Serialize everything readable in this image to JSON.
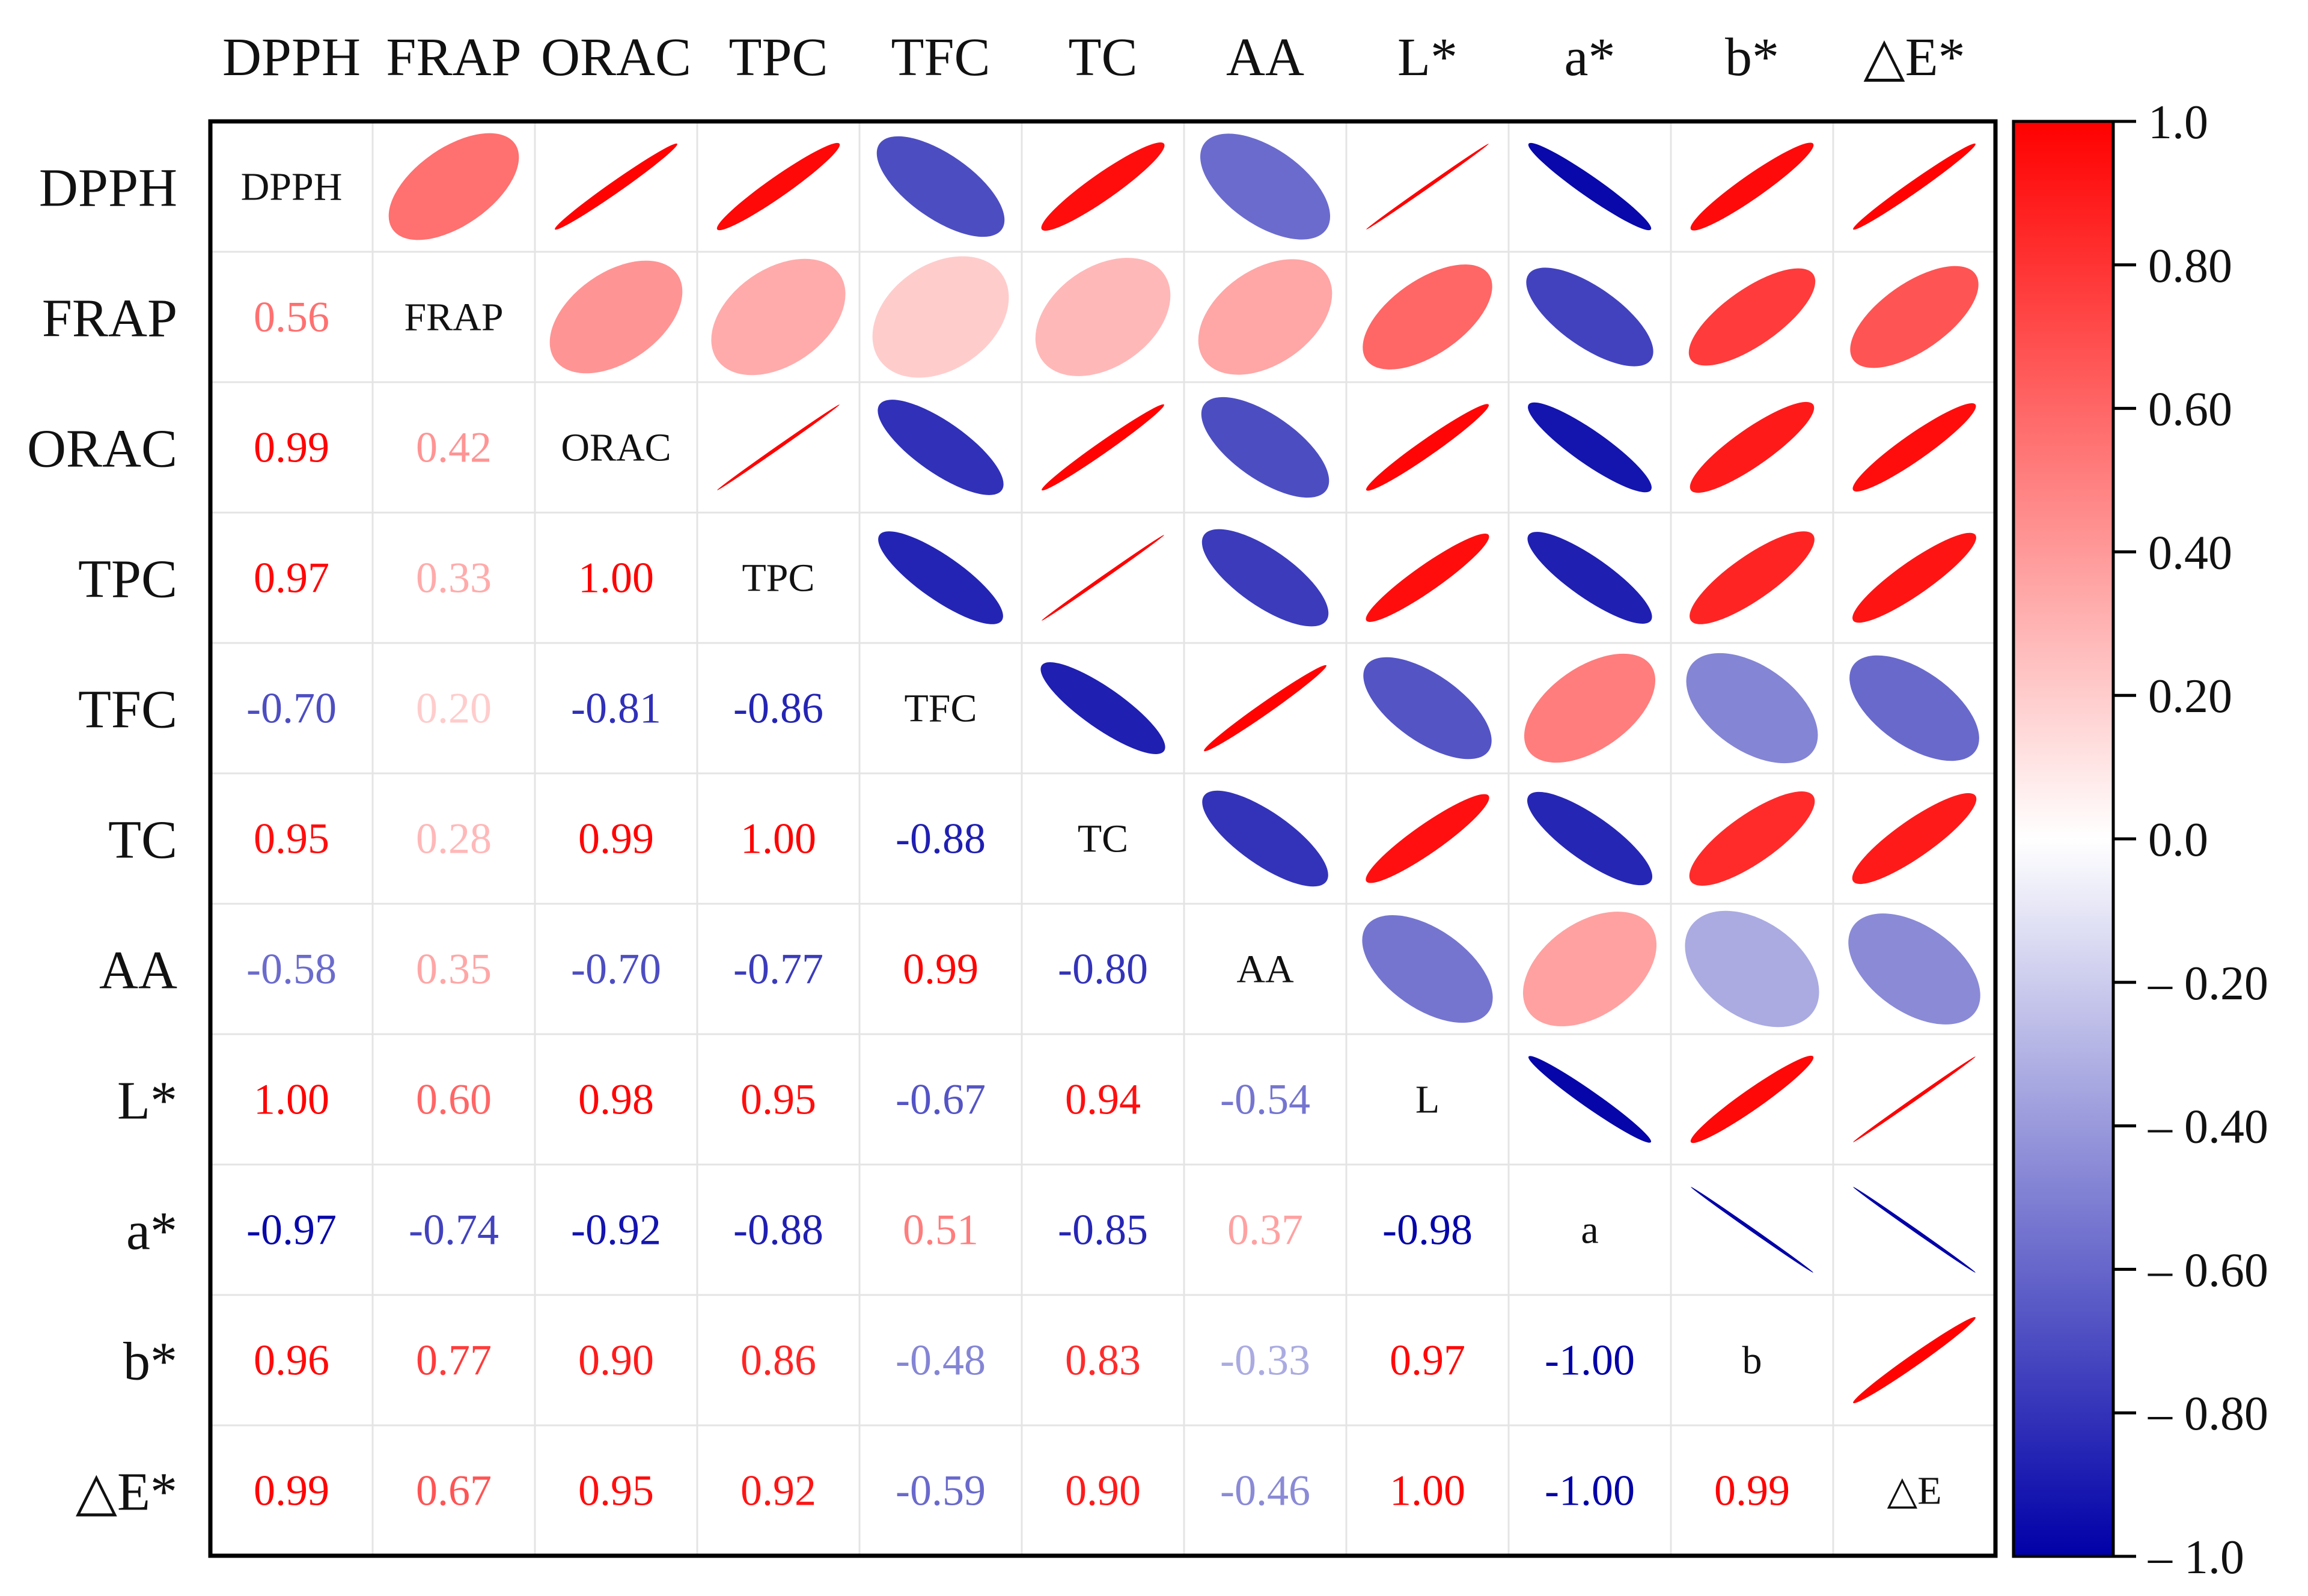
{
  "chart_data": {
    "type": "heatmap",
    "subtype": "correlation-matrix",
    "variables": [
      "DPPH",
      "FRAP",
      "ORAC",
      "TPC",
      "TFC",
      "TC",
      "AA",
      "L*",
      "a*",
      "b*",
      "△E*"
    ],
    "diagonal_labels": [
      "DPPH",
      "FRAP",
      "ORAC",
      "TPC",
      "TFC",
      "TC",
      "AA",
      "L",
      "a",
      "b",
      "△E"
    ],
    "matrix": [
      [
        1.0,
        0.56,
        0.99,
        0.97,
        -0.7,
        0.95,
        -0.58,
        1.0,
        -0.97,
        0.96,
        0.99
      ],
      [
        0.56,
        1.0,
        0.42,
        0.33,
        0.2,
        0.28,
        0.35,
        0.6,
        -0.74,
        0.77,
        0.67
      ],
      [
        0.99,
        0.42,
        1.0,
        1.0,
        -0.81,
        0.99,
        -0.7,
        0.98,
        -0.92,
        0.9,
        0.95
      ],
      [
        0.97,
        0.33,
        1.0,
        1.0,
        -0.86,
        1.0,
        -0.77,
        0.95,
        -0.88,
        0.86,
        0.92
      ],
      [
        -0.7,
        0.2,
        -0.81,
        -0.86,
        1.0,
        -0.88,
        0.99,
        -0.67,
        0.51,
        -0.48,
        -0.59
      ],
      [
        0.95,
        0.28,
        0.99,
        1.0,
        -0.88,
        1.0,
        -0.8,
        0.94,
        -0.85,
        0.83,
        0.9
      ],
      [
        -0.58,
        0.35,
        -0.7,
        -0.77,
        0.99,
        -0.8,
        1.0,
        -0.54,
        0.37,
        -0.33,
        -0.46
      ],
      [
        1.0,
        0.6,
        0.98,
        0.95,
        -0.67,
        0.94,
        -0.54,
        1.0,
        -0.98,
        0.97,
        1.0
      ],
      [
        -0.97,
        -0.74,
        -0.92,
        -0.88,
        0.51,
        -0.85,
        0.37,
        -0.98,
        1.0,
        -1.0,
        -1.0
      ],
      [
        0.96,
        0.77,
        0.9,
        0.86,
        -0.48,
        0.83,
        -0.33,
        0.97,
        -1.0,
        1.0,
        0.99
      ],
      [
        0.99,
        0.67,
        0.95,
        0.92,
        -0.59,
        0.9,
        -0.46,
        1.0,
        -1.0,
        0.99,
        1.0
      ]
    ],
    "lower_triangle": "numbers",
    "upper_triangle": "ellipses",
    "colorbar": {
      "range": [
        -1.0,
        1.0
      ],
      "ticks": [
        "1.0",
        "0.80",
        "0.60",
        "0.40",
        "0.20",
        "0.0",
        "– 0.20",
        "– 0.40",
        "– 0.60",
        "– 0.80",
        "– 1.0"
      ],
      "colors": {
        "negative": "#0000a8",
        "zero": "#ffffff",
        "positive": "#ff0000"
      }
    }
  }
}
